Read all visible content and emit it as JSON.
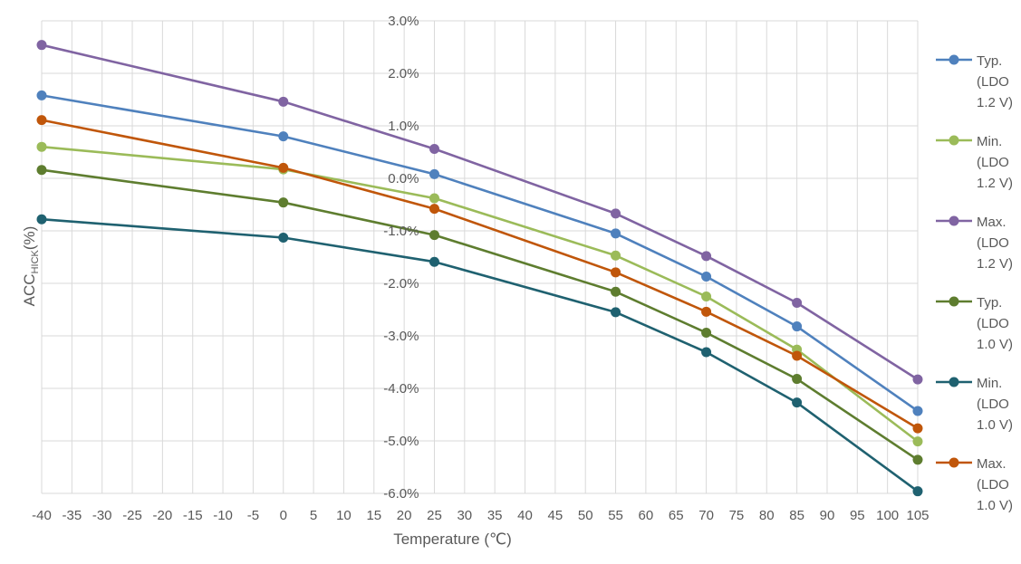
{
  "chart_data": {
    "type": "line",
    "title": "",
    "xlabel": "Temperature (℃)",
    "ylabel_main": "ACC",
    "ylabel_sub": "HICK",
    "ylabel_suffix": "(%)",
    "xlim": [
      -40,
      105
    ],
    "ylim": [
      -6.0,
      3.0
    ],
    "x_ticks": [
      -40,
      -35,
      -30,
      -25,
      -20,
      -15,
      -10,
      -5,
      0,
      5,
      10,
      15,
      20,
      25,
      30,
      35,
      40,
      45,
      50,
      55,
      60,
      65,
      70,
      75,
      80,
      85,
      90,
      95,
      100,
      105
    ],
    "y_ticks": [
      3.0,
      2.0,
      1.0,
      0.0,
      -1.0,
      -2.0,
      -3.0,
      -4.0,
      -5.0,
      -6.0
    ],
    "y_tick_labels": [
      "3.0%",
      "2.0%",
      "1.0%",
      "0.0%",
      "-1.0%",
      "-2.0%",
      "-3.0%",
      "-4.0%",
      "-5.0%",
      "-6.0%"
    ],
    "grid": true,
    "legend_position": "right",
    "x": [
      -40,
      0,
      25,
      55,
      70,
      85,
      105
    ],
    "series": [
      {
        "name_lines": [
          "Typ.",
          "(LDO",
          "1.2 V)"
        ],
        "color": "#4F81BD",
        "values": [
          1.58,
          0.8,
          0.08,
          -1.05,
          -1.87,
          -2.82,
          -4.43
        ]
      },
      {
        "name_lines": [
          "Min.",
          "(LDO",
          "1.2 V)"
        ],
        "color": "#9BBB59",
        "values": [
          0.6,
          0.17,
          -0.38,
          -1.47,
          -2.25,
          -3.26,
          -5.01
        ]
      },
      {
        "name_lines": [
          "Max.",
          "(LDO",
          "1.2 V)"
        ],
        "color": "#8064A2",
        "values": [
          2.54,
          1.46,
          0.56,
          -0.67,
          -1.48,
          -2.37,
          -3.83
        ]
      },
      {
        "name_lines": [
          "Typ.",
          "(LDO",
          "1.0 V)"
        ],
        "color": "#5E7D2F",
        "values": [
          0.16,
          -0.46,
          -1.08,
          -2.16,
          -2.94,
          -3.82,
          -5.36
        ]
      },
      {
        "name_lines": [
          "Min.",
          "(LDO",
          "1.0 V)"
        ],
        "color": "#1F6170",
        "values": [
          -0.78,
          -1.13,
          -1.59,
          -2.55,
          -3.31,
          -4.27,
          -5.96
        ]
      },
      {
        "name_lines": [
          "Max.",
          "(LDO",
          "1.0 V)"
        ],
        "color": "#C0560A",
        "values": [
          1.11,
          0.2,
          -0.58,
          -1.79,
          -2.54,
          -3.38,
          -4.76
        ]
      }
    ]
  }
}
